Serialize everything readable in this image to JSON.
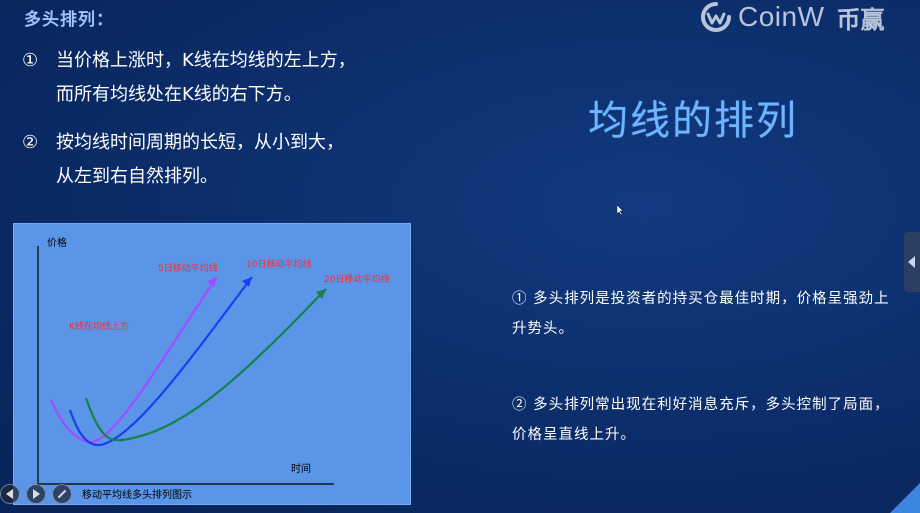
{
  "header": {
    "title": "多头排列："
  },
  "logo": {
    "name": "CoinW",
    "cn": "币赢"
  },
  "bullets": [
    {
      "num": "①",
      "line1": "当价格上涨时，K线在均线的左上方，",
      "line2": "而所有均线处在K线的右下方。"
    },
    {
      "num": "②",
      "line1": "按均线时间周期的长短，从小到大，",
      "line2": "从左到右自然排列。"
    }
  ],
  "main_title": "均线的排列",
  "right_text": [
    "① 多头排列是投资者的持买仓最佳时期，价格呈强劲上升势头。",
    "② 多头排列常出现在利好消息充斥，多头控制了局面，价格呈直线上升。"
  ],
  "chart_data": {
    "type": "line",
    "ylabel": "价格",
    "xlabel": "时间",
    "caption": "移动平均线多头排列图示",
    "annotation": "K线在均线上方",
    "series": [
      {
        "name": "5日移动平均线",
        "color": "#a24cff"
      },
      {
        "name": "10日移动平均线",
        "color": "#1b3ef0"
      },
      {
        "name": "20日移动平均线",
        "color": "#18804a"
      }
    ],
    "grid": false,
    "legend": "inline labels at line ends"
  },
  "colors": {
    "background": "#0b2c68",
    "title": "#6fb4ff",
    "chart_bg": "#5b95e8",
    "label_red": "#ff2a2a"
  }
}
